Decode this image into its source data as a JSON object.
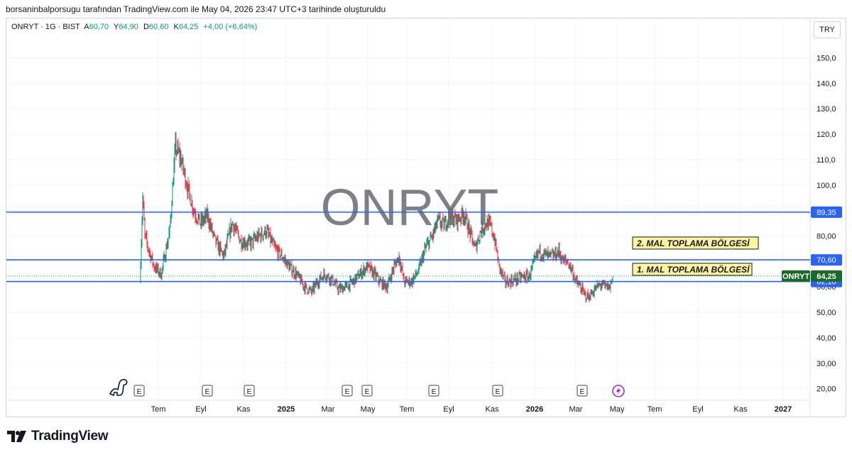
{
  "caption": "borsaninbalporsugu tarafından TradingView.com ile May 04, 2026 23:47 UTC+3 tarihinde oluşturuldu",
  "legend": {
    "symbol": "ONRYT · 1G · BIST",
    "open_label": "A",
    "open": "60,70",
    "high_label": "Y",
    "high": "64,90",
    "low_label": "D",
    "low": "60,60",
    "close_label": "K",
    "close": "64,25",
    "change": "+4,00 (+6,64%)"
  },
  "currency_button": "TRY",
  "watermark": "ONRYT",
  "brand": "TradingView",
  "colors": {
    "up": "#089981",
    "down": "#f23645",
    "line": "#2962ff",
    "zone_fill": "#fff59d"
  },
  "chart_data": {
    "type": "candlestick",
    "ylim": [
      16,
      156
    ],
    "y_ticks": [
      "20,00",
      "30,00",
      "40,00",
      "50,00",
      "60,00",
      "70,00",
      "80,00",
      "90,00",
      "100,0",
      "110,0",
      "120,0",
      "130,0",
      "140,0",
      "150,0"
    ],
    "x_ticks": [
      "Tem",
      "Eyl",
      "Kas",
      "2025",
      "Mar",
      "May",
      "Tem",
      "Eyl",
      "Kas",
      "2026",
      "Mar",
      "May",
      "Tem",
      "Eyl",
      "Kas",
      "2027"
    ],
    "horizontal_lines": [
      {
        "value": 89.35,
        "label": "89,35"
      },
      {
        "value": 70.6,
        "label": "70,60"
      },
      {
        "value": 62.1,
        "label": "62,10"
      }
    ],
    "last_price": {
      "symbol": "ONRYT",
      "value": 64.25,
      "label": "64,25"
    },
    "annotations": [
      "2. MAL TOPLAMA BÖLGESİ",
      "1. MAL TOPLAMA BÖLGESİ"
    ],
    "event_markers": [
      "E",
      "E",
      "E",
      "E",
      "E",
      "E",
      "E",
      "E"
    ],
    "price_path": [
      [
        0,
        62
      ],
      [
        4,
        95
      ],
      [
        7,
        80
      ],
      [
        12,
        75
      ],
      [
        20,
        68
      ],
      [
        30,
        65
      ],
      [
        42,
        82
      ],
      [
        50,
        115
      ],
      [
        58,
        110
      ],
      [
        68,
        98
      ],
      [
        76,
        90
      ],
      [
        85,
        85
      ],
      [
        95,
        88
      ],
      [
        106,
        78
      ],
      [
        118,
        72
      ],
      [
        130,
        85
      ],
      [
        142,
        78
      ],
      [
        155,
        77
      ],
      [
        168,
        80
      ],
      [
        178,
        82
      ],
      [
        190,
        75
      ],
      [
        200,
        72
      ],
      [
        210,
        68
      ],
      [
        220,
        65
      ],
      [
        232,
        60
      ],
      [
        242,
        58
      ],
      [
        250,
        62
      ],
      [
        260,
        65
      ],
      [
        270,
        63
      ],
      [
        280,
        59
      ],
      [
        290,
        60
      ],
      [
        300,
        62
      ],
      [
        310,
        65
      ],
      [
        320,
        68
      ],
      [
        330,
        65
      ],
      [
        338,
        62
      ],
      [
        348,
        60
      ],
      [
        358,
        68
      ],
      [
        365,
        72
      ],
      [
        372,
        62
      ],
      [
        382,
        62
      ],
      [
        392,
        66
      ],
      [
        402,
        75
      ],
      [
        412,
        80
      ],
      [
        420,
        86
      ],
      [
        428,
        84
      ],
      [
        436,
        88
      ],
      [
        446,
        86
      ],
      [
        456,
        89
      ],
      [
        464,
        82
      ],
      [
        472,
        75
      ],
      [
        480,
        82
      ],
      [
        488,
        85
      ],
      [
        494,
        84
      ],
      [
        500,
        78
      ],
      [
        506,
        68
      ],
      [
        514,
        62
      ],
      [
        520,
        62
      ],
      [
        530,
        63
      ],
      [
        540,
        64
      ],
      [
        548,
        64
      ],
      [
        556,
        70
      ],
      [
        562,
        74
      ],
      [
        568,
        73
      ],
      [
        576,
        72
      ],
      [
        582,
        72
      ],
      [
        590,
        74
      ],
      [
        596,
        70
      ],
      [
        602,
        70
      ],
      [
        608,
        67
      ],
      [
        614,
        62
      ],
      [
        620,
        60
      ],
      [
        626,
        57
      ],
      [
        632,
        56
      ],
      [
        638,
        58
      ],
      [
        644,
        60
      ],
      [
        650,
        61
      ],
      [
        656,
        60
      ],
      [
        662,
        60
      ],
      [
        666,
        64
      ]
    ]
  }
}
